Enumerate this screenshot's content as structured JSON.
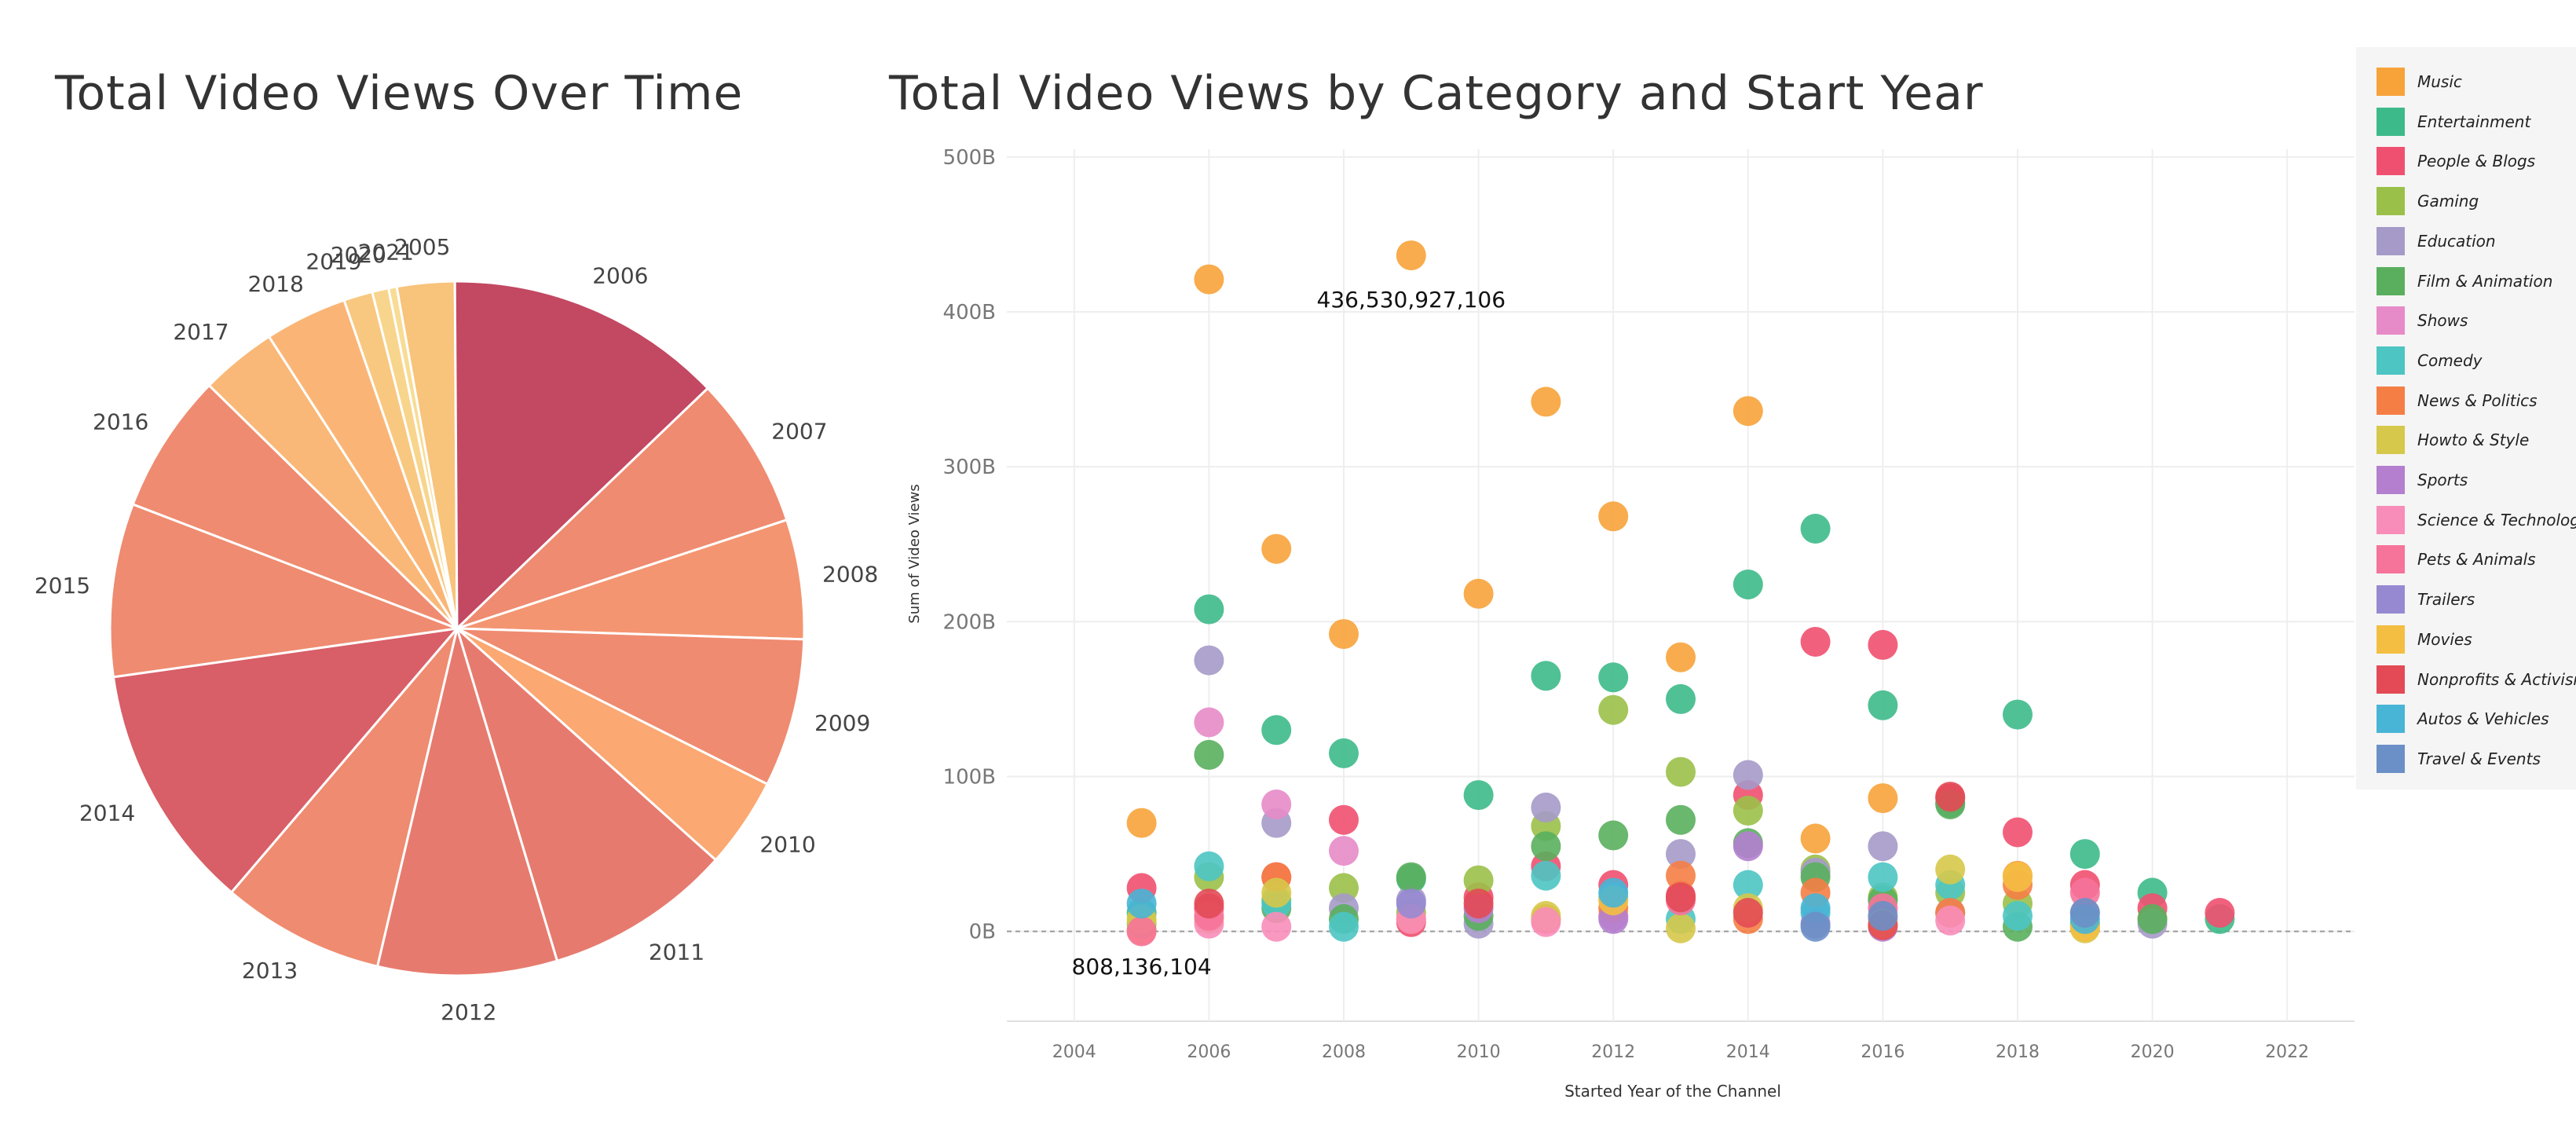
{
  "chart_data": [
    {
      "type": "pie",
      "title": "Total Video Views Over Time",
      "labels": [
        "2005",
        "2006",
        "2007",
        "2008",
        "2009",
        "2010",
        "2011",
        "2012",
        "2013",
        "2014",
        "2015",
        "2016",
        "2017",
        "2018",
        "2019",
        "2020",
        "2021"
      ],
      "values": [
        28,
        135,
        74,
        58,
        72,
        44,
        91,
        87,
        79,
        120,
        84,
        68,
        37,
        40,
        14,
        8,
        4
      ],
      "colors": [
        "#f8c37a",
        "#c34862",
        "#ef8b70",
        "#f49571",
        "#ef8b70",
        "#fba872",
        "#e77a6e",
        "#e77a6e",
        "#ef8b70",
        "#d85e67",
        "#ef8b70",
        "#ef8b70",
        "#f9b877",
        "#fab576",
        "#f8c880",
        "#f8d58c",
        "#f8dc95"
      ]
    },
    {
      "type": "scatter",
      "title": "Total Video Views by Category and Start Year",
      "xlabel": "Started Year of the Channel",
      "ylabel": "Sum of Video Views",
      "xlim": [
        2003,
        2023
      ],
      "ylim": [
        -58,
        505
      ],
      "xticks": [
        "2004",
        "2006",
        "2008",
        "2010",
        "2012",
        "2014",
        "2016",
        "2018",
        "2020",
        "2022"
      ],
      "yticks": [
        {
          "value": 0,
          "label": "0B"
        },
        {
          "value": 100,
          "label": "100B"
        },
        {
          "value": 200,
          "label": "200B"
        },
        {
          "value": 300,
          "label": "300B"
        },
        {
          "value": 400,
          "label": "400B"
        },
        {
          "value": 500,
          "label": "500B"
        }
      ],
      "grid": true,
      "legend_position": "right",
      "annotations": [
        {
          "text": "436,530,927,106",
          "x": 2009,
          "y": 436.5
        },
        {
          "text": "808,136,104",
          "x": 2005,
          "y": 0.8
        }
      ],
      "series": [
        {
          "name": "Music",
          "color": "#f7a33a",
          "points": [
            [
              2005,
              70
            ],
            [
              2006,
              421
            ],
            [
              2007,
              247
            ],
            [
              2008,
              192
            ],
            [
              2009,
              436.5
            ],
            [
              2010,
              218
            ],
            [
              2011,
              342
            ],
            [
              2012,
              268
            ],
            [
              2013,
              177
            ],
            [
              2014,
              336
            ],
            [
              2015,
              60
            ],
            [
              2016,
              86
            ],
            [
              2017,
              12
            ],
            [
              2018,
              36
            ],
            [
              2019,
              4
            ],
            [
              2020,
              8
            ],
            [
              2005,
              0.8
            ]
          ]
        },
        {
          "name": "Entertainment",
          "color": "#3dba8a",
          "points": [
            [
              2005,
              12
            ],
            [
              2006,
              208
            ],
            [
              2007,
              130
            ],
            [
              2008,
              115
            ],
            [
              2009,
              34
            ],
            [
              2010,
              88
            ],
            [
              2011,
              165
            ],
            [
              2012,
              164
            ],
            [
              2013,
              150
            ],
            [
              2014,
              224
            ],
            [
              2015,
              260
            ],
            [
              2016,
              146
            ],
            [
              2017,
              83
            ],
            [
              2018,
              140
            ],
            [
              2019,
              50
            ],
            [
              2020,
              25
            ],
            [
              2021,
              8
            ]
          ]
        },
        {
          "name": "People & Blogs",
          "color": "#f0506f",
          "points": [
            [
              2005,
              28
            ],
            [
              2006,
              15
            ],
            [
              2007,
              35
            ],
            [
              2008,
              72
            ],
            [
              2009,
              6
            ],
            [
              2010,
              22
            ],
            [
              2011,
              42
            ],
            [
              2012,
              30
            ],
            [
              2013,
              23
            ],
            [
              2014,
              88
            ],
            [
              2015,
              187
            ],
            [
              2016,
              185
            ],
            [
              2017,
              86
            ],
            [
              2018,
              64
            ],
            [
              2019,
              30
            ],
            [
              2020,
              15
            ],
            [
              2021,
              12
            ]
          ]
        },
        {
          "name": "Gaming",
          "color": "#9bc049",
          "points": [
            [
              2005,
              5
            ],
            [
              2006,
              35
            ],
            [
              2007,
              20
            ],
            [
              2008,
              28
            ],
            [
              2009,
              12
            ],
            [
              2010,
              33
            ],
            [
              2011,
              68
            ],
            [
              2012,
              143
            ],
            [
              2013,
              103
            ],
            [
              2014,
              78
            ],
            [
              2015,
              40
            ],
            [
              2016,
              22
            ],
            [
              2017,
              25
            ],
            [
              2018,
              18
            ]
          ]
        },
        {
          "name": "Education",
          "color": "#a59ac8",
          "points": [
            [
              2006,
              175
            ],
            [
              2007,
              70
            ],
            [
              2008,
              15
            ],
            [
              2009,
              20
            ],
            [
              2010,
              5
            ],
            [
              2011,
              80
            ],
            [
              2012,
              10
            ],
            [
              2013,
              50
            ],
            [
              2014,
              101
            ],
            [
              2015,
              38
            ],
            [
              2016,
              55
            ],
            [
              2017,
              12
            ],
            [
              2019,
              12
            ],
            [
              2020,
              5
            ]
          ]
        },
        {
          "name": "Film & Animation",
          "color": "#5aaf5e",
          "points": [
            [
              2006,
              114
            ],
            [
              2007,
              15
            ],
            [
              2008,
              8
            ],
            [
              2009,
              35
            ],
            [
              2010,
              10
            ],
            [
              2011,
              55
            ],
            [
              2012,
              62
            ],
            [
              2013,
              72
            ],
            [
              2014,
              57
            ],
            [
              2015,
              35
            ],
            [
              2016,
              20
            ],
            [
              2017,
              82
            ],
            [
              2018,
              3
            ],
            [
              2019,
              5
            ],
            [
              2020,
              8
            ]
          ]
        },
        {
          "name": "Shows",
          "color": "#e78bc8",
          "points": [
            [
              2006,
              135
            ],
            [
              2007,
              82
            ],
            [
              2008,
              52
            ],
            [
              2012,
              10
            ]
          ]
        },
        {
          "name": "Comedy",
          "color": "#4cc5c3",
          "points": [
            [
              2006,
              42
            ],
            [
              2007,
              18
            ],
            [
              2008,
              3
            ],
            [
              2011,
              36
            ],
            [
              2012,
              22
            ],
            [
              2013,
              8
            ],
            [
              2014,
              30
            ],
            [
              2015,
              12
            ],
            [
              2016,
              35
            ],
            [
              2017,
              30
            ],
            [
              2018,
              10
            ]
          ]
        },
        {
          "name": "News & Politics",
          "color": "#f57e45",
          "points": [
            [
              2007,
              35
            ],
            [
              2009,
              8
            ],
            [
              2011,
              8
            ],
            [
              2012,
              15
            ],
            [
              2013,
              36
            ],
            [
              2014,
              8
            ],
            [
              2015,
              25
            ],
            [
              2017,
              12
            ],
            [
              2018,
              30
            ]
          ]
        },
        {
          "name": "Howto & Style",
          "color": "#d6c84a",
          "points": [
            [
              2005,
              8
            ],
            [
              2006,
              8
            ],
            [
              2007,
              25
            ],
            [
              2011,
              10
            ],
            [
              2013,
              2
            ],
            [
              2014,
              15
            ],
            [
              2017,
              40
            ],
            [
              2019,
              2
            ]
          ]
        },
        {
          "name": "Sports",
          "color": "#b47fcf",
          "points": [
            [
              2010,
              15
            ],
            [
              2012,
              8
            ],
            [
              2014,
              55
            ],
            [
              2016,
              3
            ]
          ]
        },
        {
          "name": "Science & Technology",
          "color": "#f88db9",
          "points": [
            [
              2006,
              5
            ],
            [
              2007,
              3
            ],
            [
              2009,
              8
            ],
            [
              2011,
              6
            ],
            [
              2016,
              8
            ],
            [
              2017,
              7
            ]
          ]
        },
        {
          "name": "Pets & Animals",
          "color": "#f6739a",
          "points": [
            [
              2005,
              0
            ],
            [
              2006,
              10
            ],
            [
              2013,
              20
            ],
            [
              2016,
              15
            ],
            [
              2019,
              25
            ]
          ]
        },
        {
          "name": "Trailers",
          "color": "#9789d1",
          "points": [
            [
              2009,
              18
            ],
            [
              2015,
              5
            ]
          ]
        },
        {
          "name": "Movies",
          "color": "#f4be42",
          "points": [
            [
              2012,
              20
            ],
            [
              2016,
              5
            ],
            [
              2018,
              35
            ],
            [
              2019,
              3
            ]
          ]
        },
        {
          "name": "Nonprofits & Activism",
          "color": "#e34a55",
          "points": [
            [
              2006,
              18
            ],
            [
              2010,
              18
            ],
            [
              2013,
              22
            ],
            [
              2014,
              12
            ],
            [
              2016,
              4
            ],
            [
              2017,
              87
            ]
          ]
        },
        {
          "name": "Autos & Vehicles",
          "color": "#48b5d6",
          "points": [
            [
              2005,
              18
            ],
            [
              2012,
              25
            ],
            [
              2015,
              15
            ],
            [
              2019,
              8
            ]
          ]
        },
        {
          "name": "Travel & Events",
          "color": "#6b8fc7",
          "points": [
            [
              2015,
              3
            ],
            [
              2016,
              10
            ],
            [
              2019,
              12
            ]
          ]
        }
      ]
    }
  ]
}
